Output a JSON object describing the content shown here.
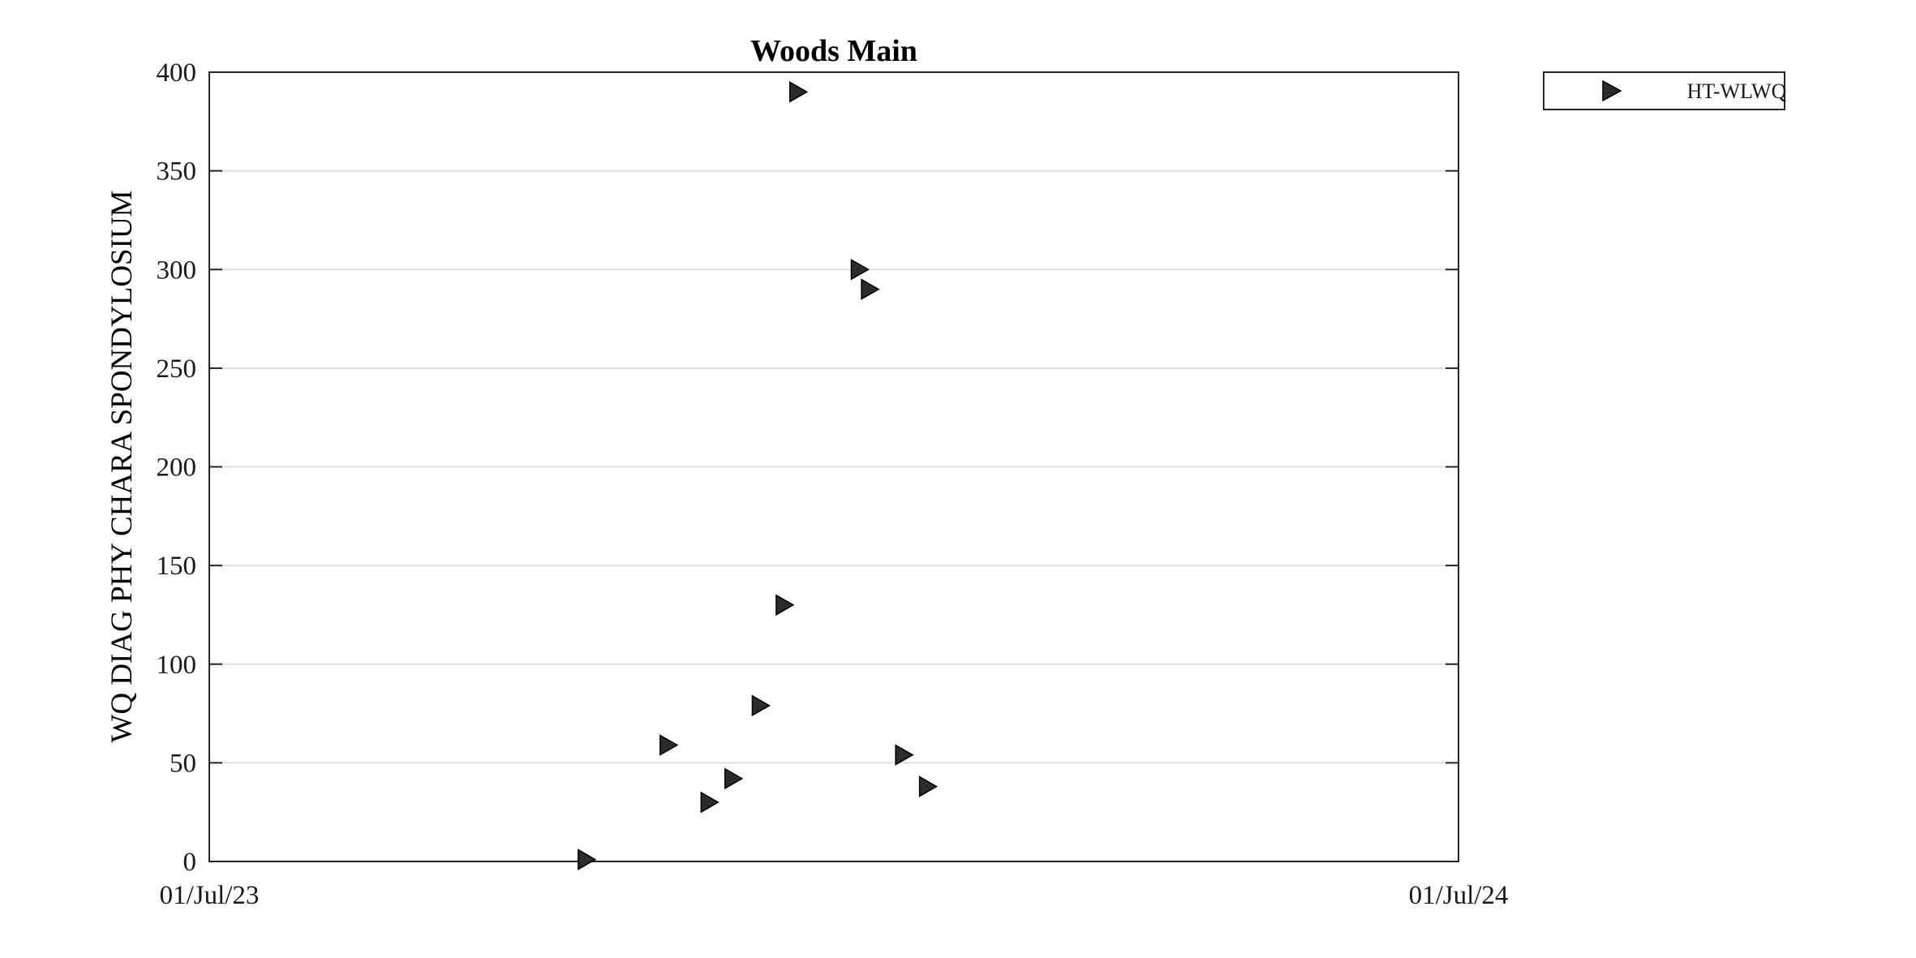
{
  "chart_data": {
    "type": "scatter",
    "title": "Woods Main",
    "xlabel": "",
    "ylabel": "WQ DIAG PHY CHARA SPONDYLOSIUM",
    "x_type": "date",
    "xlim": [
      "2023-07-01",
      "2024-07-01"
    ],
    "x_tick_values": [
      "2023-07-01",
      "2024-07-01"
    ],
    "x_tick_labels": [
      "01/Jul/23",
      "01/Jul/24"
    ],
    "ylim": [
      0,
      400
    ],
    "y_ticks": [
      0,
      50,
      100,
      150,
      200,
      250,
      300,
      350,
      400
    ],
    "y_tick_labels": [
      "0",
      "50",
      "100",
      "150",
      "200",
      "250",
      "300",
      "350",
      "400"
    ],
    "grid": "horizontal",
    "legend_position": "outside-top-right",
    "marker": "triangle-right",
    "series": [
      {
        "name": "HT-WLWQ",
        "color": "#2b2b2b",
        "points": [
          {
            "x": "2023-10-19",
            "y": 1
          },
          {
            "x": "2023-11-12",
            "y": 59
          },
          {
            "x": "2023-11-24",
            "y": 30
          },
          {
            "x": "2023-12-01",
            "y": 42
          },
          {
            "x": "2023-12-09",
            "y": 79
          },
          {
            "x": "2023-12-16",
            "y": 130
          },
          {
            "x": "2023-12-20",
            "y": 390
          },
          {
            "x": "2024-01-07",
            "y": 300
          },
          {
            "x": "2024-01-10",
            "y": 290
          },
          {
            "x": "2024-01-20",
            "y": 54
          },
          {
            "x": "2024-01-27",
            "y": 38
          }
        ]
      }
    ]
  }
}
